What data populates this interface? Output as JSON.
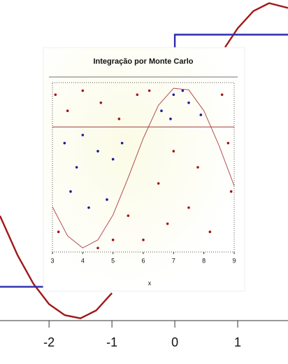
{
  "chart_data": [
    {
      "type": "line",
      "xlim": [
        -2.78,
        1.8
      ],
      "ylim": [
        -1.29,
        1.02
      ],
      "xticks": [
        -2,
        -1,
        0,
        1
      ],
      "series": [
        {
          "type": "line",
          "color": "#a01818",
          "x": [
            -2.78,
            -2.5,
            -2.25,
            -2,
            -1.75,
            -1.5,
            -1.25,
            -1,
            -0.5,
            0.8,
            1.0,
            1.25,
            1.5,
            1.8
          ],
          "values": [
            -0.35,
            -0.6,
            -0.78,
            -0.91,
            -0.98,
            -1.0,
            -0.95,
            -0.84,
            null,
            0.72,
            0.84,
            0.95,
            1.0,
            0.97
          ]
        },
        {
          "type": "line",
          "color": "#2b2bb0",
          "x": [
            -2.78,
            -2
          ],
          "values": [
            -0.8,
            -0.8
          ]
        },
        {
          "type": "line",
          "color": "#2b2bb0",
          "x": [
            0,
            0,
            1.8
          ],
          "values": [
            0.72,
            0.8,
            0.8
          ]
        }
      ]
    },
    {
      "type": "scatter",
      "title": "Integração por Monte Carlo",
      "xlabel": "x",
      "xlim": [
        3,
        9
      ],
      "ylim": [
        -1.05,
        1.05
      ],
      "xticks": [
        3,
        4,
        5,
        6,
        7,
        8,
        9
      ],
      "series": [
        {
          "type": "points",
          "color": "#a31515",
          "x": [
            3.1,
            3.5,
            4.0,
            4.6,
            5.2,
            5.8,
            6.2,
            8.6,
            8.8,
            7.0,
            6.5,
            7.5,
            8.2,
            6.0,
            5.5,
            8.9,
            3.2,
            4.5,
            7.8,
            6.8,
            5.0
          ],
          "values": [
            0.9,
            0.7,
            0.95,
            0.8,
            0.6,
            0.9,
            0.95,
            0.9,
            0.3,
            0.2,
            -0.2,
            -0.5,
            -0.8,
            -0.9,
            -0.6,
            -0.3,
            -0.8,
            -1.0,
            0.0,
            -0.7,
            -0.9
          ]
        },
        {
          "type": "points",
          "color": "#1c1c9c",
          "x": [
            3.4,
            3.8,
            4.2,
            4.5,
            5.0,
            3.6,
            4.0,
            5.3,
            4.8,
            6.6,
            7.0,
            7.5,
            7.9,
            6.9,
            7.3
          ],
          "values": [
            0.3,
            0.0,
            -0.5,
            0.2,
            0.1,
            -0.3,
            0.4,
            0.3,
            -0.4,
            0.7,
            0.9,
            0.8,
            0.65,
            0.6,
            0.95
          ]
        },
        {
          "type": "line",
          "color": "#b35050",
          "x": [
            3,
            3.5,
            4,
            4.5,
            5,
            5.5,
            6,
            6.5,
            7,
            7.5,
            8,
            8.5,
            9
          ],
          "values": [
            -0.49,
            -0.85,
            -1.0,
            -0.9,
            -0.59,
            -0.13,
            0.36,
            0.77,
            0.98,
            0.96,
            0.7,
            0.27,
            -0.23
          ]
        },
        {
          "type": "line",
          "color": "#a04040",
          "x": [
            3,
            9
          ],
          "values": [
            0.5,
            0.5
          ]
        }
      ]
    }
  ]
}
